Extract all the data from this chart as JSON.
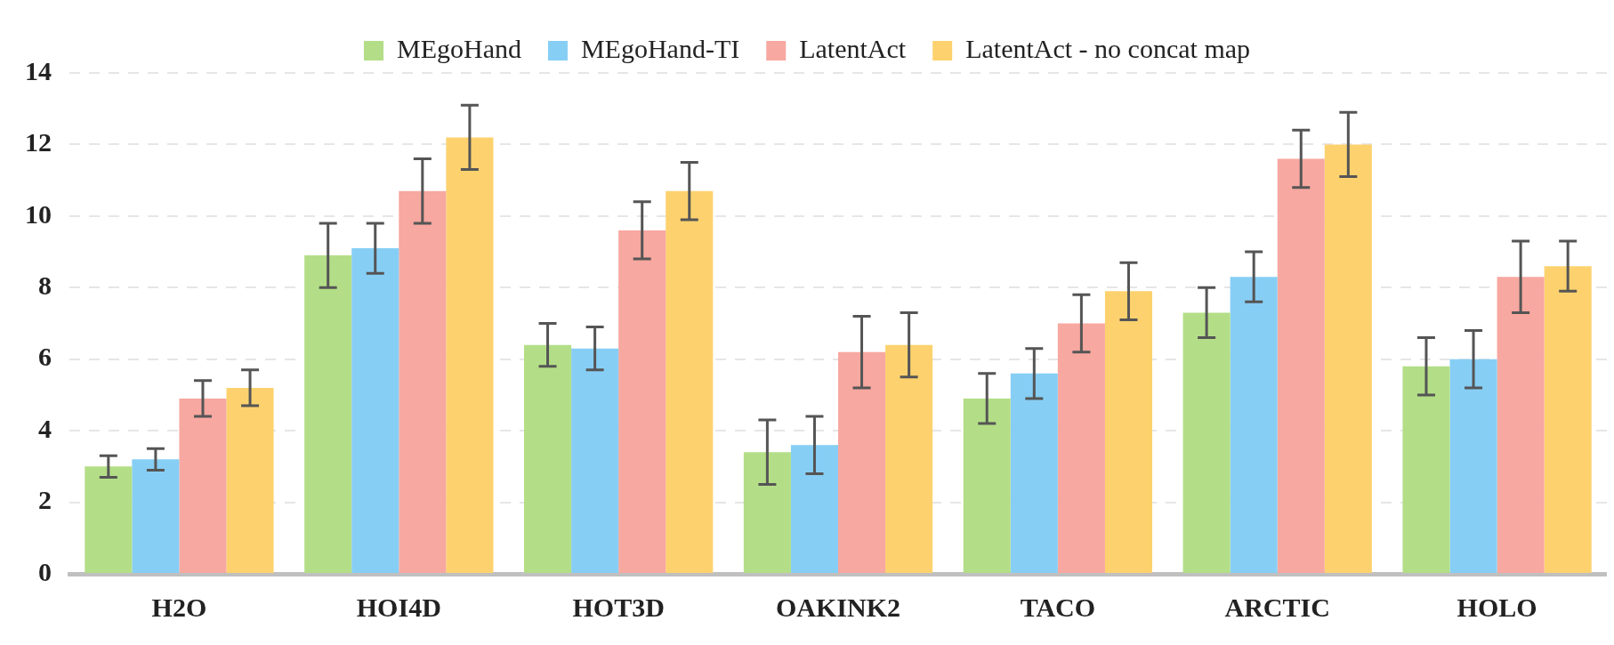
{
  "chart_data": {
    "type": "bar",
    "categories": [
      "H2O",
      "HOI4D",
      "HOT3D",
      "OAKINK2",
      "TACO",
      "ARCTIC",
      "HOLO"
    ],
    "series": [
      {
        "name": "MEgoHand",
        "color": "#b3de87",
        "values": [
          3.0,
          8.9,
          6.4,
          3.4,
          4.9,
          7.3,
          5.8
        ],
        "errors": [
          0.3,
          0.9,
          0.6,
          0.9,
          0.7,
          0.7,
          0.8
        ]
      },
      {
        "name": "MEgoHand-TI",
        "color": "#87cef5",
        "values": [
          3.2,
          9.1,
          6.3,
          3.6,
          5.6,
          8.3,
          6.0
        ],
        "errors": [
          0.3,
          0.7,
          0.6,
          0.8,
          0.7,
          0.7,
          0.8
        ]
      },
      {
        "name": "LatentAct",
        "color": "#f7a8a0",
        "values": [
          4.9,
          10.7,
          9.6,
          6.2,
          7.0,
          11.6,
          8.3
        ],
        "errors": [
          0.5,
          0.9,
          0.8,
          1.0,
          0.8,
          0.8,
          1.0
        ]
      },
      {
        "name": "LatentAct - no concat map",
        "color": "#fdd26e",
        "values": [
          5.2,
          12.2,
          10.7,
          6.4,
          7.9,
          12.0,
          8.6
        ],
        "errors": [
          0.5,
          0.9,
          0.8,
          0.9,
          0.8,
          0.9,
          0.7
        ]
      }
    ],
    "ylim": [
      0,
      14
    ],
    "yticks": [
      0,
      2,
      4,
      6,
      8,
      10,
      12,
      14
    ],
    "grid": "y",
    "legend": "top"
  }
}
